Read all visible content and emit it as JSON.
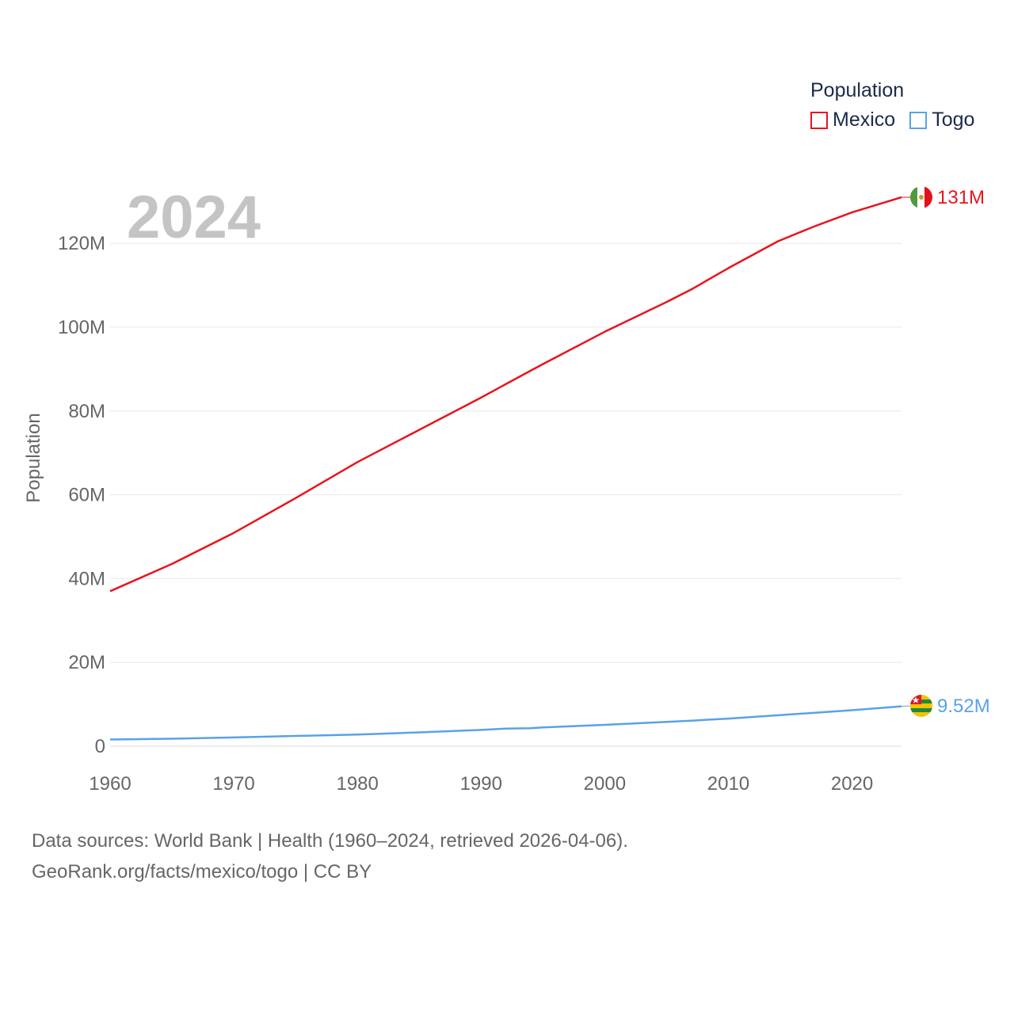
{
  "chart_data": {
    "type": "line",
    "ylabel": "Population",
    "xlabel": "",
    "xlim": [
      1960,
      2024
    ],
    "ylim": [
      0,
      135000000
    ],
    "x_ticks": [
      1960,
      1970,
      1980,
      1990,
      2000,
      2010,
      2020
    ],
    "x_tick_labels": [
      "1960",
      "1970",
      "1980",
      "1990",
      "2000",
      "2010",
      "2020"
    ],
    "y_ticks": [
      0,
      20000000,
      40000000,
      60000000,
      80000000,
      100000000,
      120000000
    ],
    "y_tick_labels": [
      "0",
      "20M",
      "40M",
      "60M",
      "80M",
      "100M",
      "120M"
    ],
    "grid": true,
    "legend_title": "Population",
    "legend_position": "top-right",
    "year_label": "2024",
    "x": [
      1960,
      1965,
      1970,
      1975,
      1980,
      1985,
      1990,
      1992,
      1994,
      1995,
      2000,
      2005,
      2007,
      2010,
      2014,
      2017,
      2020,
      2024
    ],
    "series": [
      {
        "name": "Mexico",
        "color": "#e8141e",
        "values": [
          37000000,
          43500000,
          50900000,
          59200000,
          67800000,
          75500000,
          83200000,
          86400000,
          89600000,
          91200000,
          98900000,
          106000000,
          109000000,
          114100000,
          120500000,
          124100000,
          127400000,
          131000000
        ],
        "end_label": "131M",
        "flag_icon": "mexico-flag-icon"
      },
      {
        "name": "Togo",
        "color": "#5aa2e6",
        "values": [
          1600000,
          1800000,
          2100000,
          2450000,
          2800000,
          3300000,
          3900000,
          4200000,
          4300000,
          4500000,
          5100000,
          5800000,
          6100000,
          6600000,
          7400000,
          8000000,
          8600000,
          9520000
        ],
        "end_label": "9.52M",
        "flag_icon": "togo-flag-icon"
      }
    ]
  },
  "footer": {
    "line1": "Data sources: World Bank | Health (1960–2024, retrieved 2026-04-06).",
    "line2": "GeoRank.org/facts/mexico/togo | CC BY"
  }
}
